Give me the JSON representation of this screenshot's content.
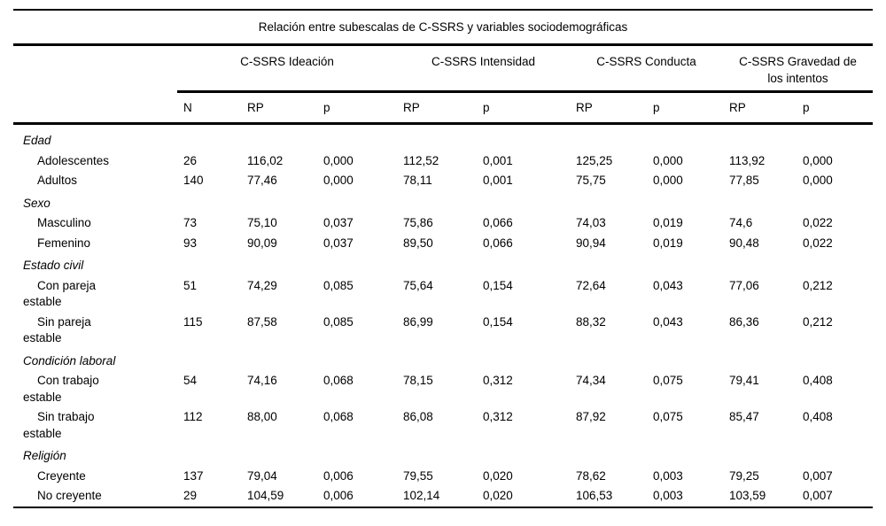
{
  "table": {
    "title": "Relación entre subescalas de C-SSRS y variables sociodemográficas",
    "groups": [
      "C-SSRS Ideación",
      "C-SSRS Intensidad",
      "C-SSRS Conducta",
      "C-SSRS Gravedad de\nlos intentos"
    ],
    "subheaders": [
      "N",
      "RP",
      "p",
      "RP",
      "p",
      "RP",
      "p",
      "RP",
      "p"
    ],
    "rows": [
      {
        "type": "section",
        "label": "Edad"
      },
      {
        "type": "item",
        "label": "Adolescentes",
        "values": [
          "26",
          "116,02",
          "0,000",
          "112,52",
          "0,001",
          "125,25",
          "0,000",
          "113,92",
          "0,000"
        ]
      },
      {
        "type": "item",
        "label": "Adultos",
        "values": [
          "140",
          "77,46",
          "0,000",
          "78,11",
          "0,001",
          "75,75",
          "0,000",
          "77,85",
          "0,000"
        ]
      },
      {
        "type": "section",
        "label": "Sexo"
      },
      {
        "type": "item",
        "label": "Masculino",
        "values": [
          "73",
          "75,10",
          "0,037",
          "75,86",
          "0,066",
          "74,03",
          "0,019",
          "74,6",
          "0,022"
        ]
      },
      {
        "type": "item",
        "label": "Femenino",
        "values": [
          "93",
          "90,09",
          "0,037",
          "89,50",
          "0,066",
          "90,94",
          "0,019",
          "90,48",
          "0,022"
        ]
      },
      {
        "type": "section",
        "label": "Estado civil"
      },
      {
        "type": "item",
        "label": "Con pareja\nestable",
        "values": [
          "51",
          "74,29",
          "0,085",
          "75,64",
          "0,154",
          "72,64",
          "0,043",
          "77,06",
          "0,212"
        ]
      },
      {
        "type": "item",
        "label": "Sin pareja\nestable",
        "values": [
          "115",
          "87,58",
          "0,085",
          "86,99",
          "0,154",
          "88,32",
          "0,043",
          "86,36",
          "0,212"
        ]
      },
      {
        "type": "section",
        "label": "Condición laboral"
      },
      {
        "type": "item",
        "label": "Con trabajo\nestable",
        "values": [
          "54",
          "74,16",
          "0,068",
          "78,15",
          "0,312",
          "74,34",
          "0,075",
          "79,41",
          "0,408"
        ]
      },
      {
        "type": "item",
        "label": "Sin trabajo\nestable",
        "values": [
          "112",
          "88,00",
          "0,068",
          "86,08",
          "0,312",
          "87,92",
          "0,075",
          "85,47",
          "0,408"
        ]
      },
      {
        "type": "section",
        "label": "Religión"
      },
      {
        "type": "item",
        "label": "Creyente",
        "values": [
          "137",
          "79,04",
          "0,006",
          "79,55",
          "0,020",
          "78,62",
          "0,003",
          "79,25",
          "0,007"
        ]
      },
      {
        "type": "item",
        "label": "No creyente",
        "values": [
          "29",
          "104,59",
          "0,006",
          "102,14",
          "0,020",
          "106,53",
          "0,003",
          "103,59",
          "0,007"
        ]
      }
    ],
    "colors": {
      "text": "#000000",
      "background": "#ffffff",
      "rule": "#000000"
    }
  }
}
